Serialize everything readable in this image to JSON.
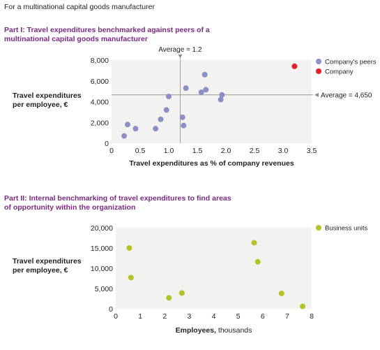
{
  "header": {
    "subtitle": "For a multinational capital goods manufacturer"
  },
  "colors": {
    "peers": "#8c8fc6",
    "company": "#e0212b",
    "units": "#b5c228",
    "panel": "#f2f3f0",
    "title": "#7b2a82",
    "refline": "#8a8a8a"
  },
  "chart_data": [
    {
      "type": "scatter",
      "title": "Part I: Travel expenditures benchmarked against peers of a multinational capital goods manufacturer",
      "ylabel_line1": "Travel expenditures",
      "ylabel_line2": "per employee, €",
      "xlabel": "Travel expenditures as % of company revenues",
      "xlim": [
        0,
        3.5
      ],
      "ylim": [
        0,
        8000
      ],
      "xticks": [
        "0",
        "0.5",
        "1.0",
        "1.5",
        "2.0",
        "2.5",
        "3.0",
        "3.5"
      ],
      "yticks": [
        "0",
        "2,000",
        "4,000",
        "6,000",
        "8,000"
      ],
      "reference_lines": {
        "x": 1.2,
        "x_label": "Average = 1.2",
        "y": 4650,
        "y_label": "Average = 4,650"
      },
      "legend_position": "top-right",
      "series": [
        {
          "name": "Company's peers",
          "color_key": "peers",
          "points": [
            [
              0.22,
              700
            ],
            [
              0.28,
              1800
            ],
            [
              0.42,
              1400
            ],
            [
              0.77,
              1400
            ],
            [
              0.86,
              2300
            ],
            [
              0.96,
              3200
            ],
            [
              1.0,
              4500
            ],
            [
              1.24,
              2500
            ],
            [
              1.26,
              1700
            ],
            [
              1.3,
              5300
            ],
            [
              1.57,
              4900
            ],
            [
              1.63,
              6600
            ],
            [
              1.65,
              5150
            ],
            [
              1.91,
              4200
            ],
            [
              1.93,
              4650
            ]
          ]
        },
        {
          "name": "Company",
          "color_key": "company",
          "points": [
            [
              3.2,
              7400
            ]
          ]
        }
      ]
    },
    {
      "type": "scatter",
      "title": "Part II: Internal benchmarking of travel expenditures to find areas of opportunity within the organization",
      "ylabel_line1": "Travel expenditures",
      "ylabel_line2": "per employee, €",
      "xlabel_bold": "Employees,",
      "xlabel_light": " thousands",
      "xlim": [
        0,
        8
      ],
      "ylim": [
        0,
        20000
      ],
      "xticks": [
        "0",
        "1",
        "2",
        "3",
        "4",
        "5",
        "6",
        "7",
        "8"
      ],
      "yticks": [
        "0",
        "5,000",
        "10,000",
        "15,000",
        "20,000"
      ],
      "legend_position": "top-right",
      "series": [
        {
          "name": "Business units",
          "color_key": "units",
          "points": [
            [
              0.55,
              15000
            ],
            [
              0.62,
              7700
            ],
            [
              2.17,
              2700
            ],
            [
              2.7,
              3900
            ],
            [
              5.65,
              16300
            ],
            [
              5.8,
              11600
            ],
            [
              6.77,
              3800
            ],
            [
              7.63,
              600
            ]
          ]
        }
      ]
    }
  ]
}
